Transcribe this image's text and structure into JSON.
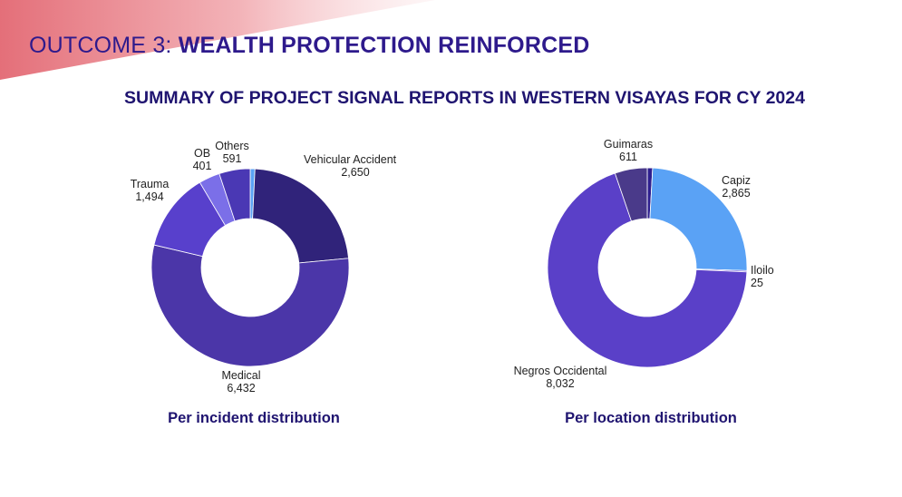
{
  "heading": {
    "prefix": "OUTCOME 3:",
    "bold": "WEALTH PROTECTION REINFORCED"
  },
  "subtitle": "SUMMARY OF PROJECT SIGNAL REPORTS IN WESTERN VISAYAS FOR CY 2024",
  "colors": {
    "brand_dark": "#1f1470",
    "ribbon": "#e46f79"
  },
  "chart_data": [
    {
      "type": "pie",
      "donut": true,
      "caption": "Per incident distribution",
      "slices": [
        {
          "label": "",
          "value": 90,
          "value_text": "",
          "color": "#5aa2f5"
        },
        {
          "label": "Vehicular Accident",
          "value": 2650,
          "value_text": "2,650",
          "color": "#30237a"
        },
        {
          "label": "Medical",
          "value": 6432,
          "value_text": "6,432",
          "color": "#4b36a8"
        },
        {
          "label": "Trauma",
          "value": 1494,
          "value_text": "1,494",
          "color": "#5840cc"
        },
        {
          "label": "OB",
          "value": 401,
          "value_text": "401",
          "color": "#7b6fe8"
        },
        {
          "label": "Others",
          "value": 591,
          "value_text": "591",
          "color": "#4a38b4"
        }
      ]
    },
    {
      "type": "pie",
      "donut": true,
      "caption": "Per location distribution",
      "slices": [
        {
          "label": "",
          "value": 100,
          "value_text": "",
          "color": "#2e1e8e"
        },
        {
          "label": "Capiz",
          "value": 2865,
          "value_text": "2,865",
          "color": "#5aa2f5"
        },
        {
          "label": "Iloilo",
          "value": 25,
          "value_text": "25",
          "color": "#6a4fd6"
        },
        {
          "label": "Negros Occidental",
          "value": 8032,
          "value_text": "8,032",
          "color": "#5a40c8"
        },
        {
          "label": "Guimaras",
          "value": 611,
          "value_text": "611",
          "color": "#4a3a8a"
        }
      ]
    }
  ]
}
